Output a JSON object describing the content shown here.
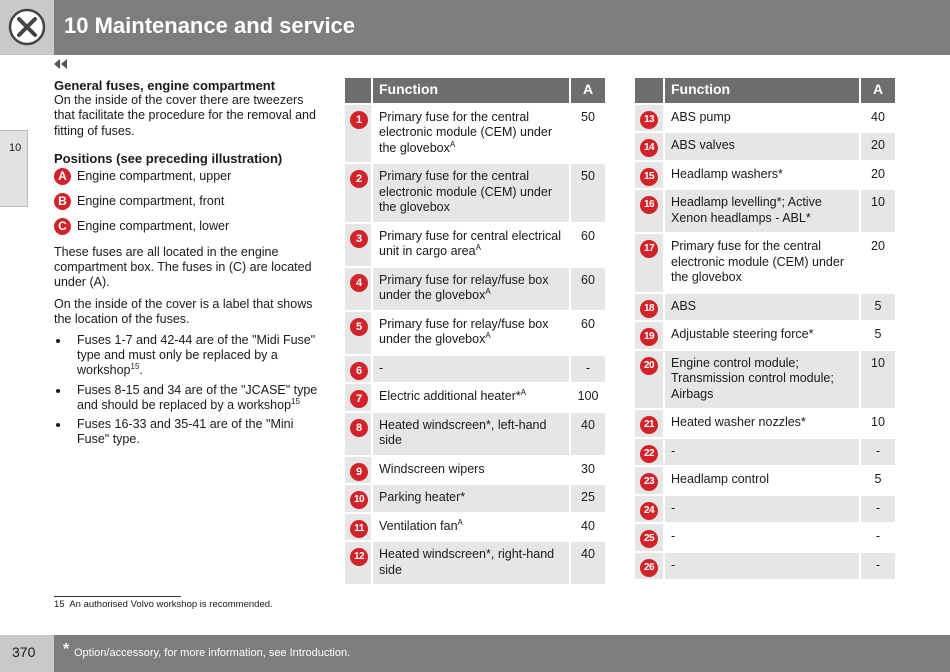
{
  "header": {
    "title": "10 Maintenance and service"
  },
  "side_tab": "10",
  "left": {
    "heading1": "General fuses, engine compartment",
    "para1": "On the inside of the cover there are tweezers that facilitate the procedure for the removal and fitting of fuses.",
    "heading2": "Positions (see preceding illustration)",
    "positions": [
      {
        "letter": "A",
        "text": "Engine compartment, upper"
      },
      {
        "letter": "B",
        "text": "Engine compartment, front"
      },
      {
        "letter": "C",
        "text": "Engine compartment, lower"
      }
    ],
    "para2": "These fuses are all located in the engine compartment box. The fuses in (C) are located under (A).",
    "para3": "On the inside of the cover is a label that shows the location of the fuses.",
    "bullets": [
      {
        "text": "Fuses 1-7 and 42-44 are of the \"Midi Fuse\" type and must only be replaced by a workshop",
        "ref": "15",
        "tail": "."
      },
      {
        "text": "Fuses 8-15 and 34 are of the \"JCASE\" type and should be replaced by a workshop",
        "ref": "15"
      },
      {
        "text": "Fuses 16-33 and 35-41 are of the \"Mini Fuse\" type."
      }
    ]
  },
  "tables": [
    {
      "headers": [
        "Function",
        "A"
      ],
      "rows": [
        {
          "num": "1",
          "function": "Primary fuse for the central electronic module (CEM) under the glovebox",
          "note": "A",
          "amps": "50"
        },
        {
          "num": "2",
          "function": "Primary fuse for the central electronic module (CEM) under the glovebox",
          "amps": "50"
        },
        {
          "num": "3",
          "function": "Primary fuse for central electrical unit in cargo area",
          "note": "A",
          "amps": "60"
        },
        {
          "num": "4",
          "function": "Primary fuse for relay/fuse box under the glovebox",
          "note": "A",
          "amps": "60"
        },
        {
          "num": "5",
          "function": "Primary fuse for relay/fuse box under the glovebox",
          "note": "A",
          "amps": "60"
        },
        {
          "num": "6",
          "function": "-",
          "amps": "-"
        },
        {
          "num": "7",
          "function": "Electric additional heater*",
          "note": "A",
          "amps": "100"
        },
        {
          "num": "8",
          "function": "Heated windscreen*, left-hand side",
          "amps": "40"
        },
        {
          "num": "9",
          "function": "Windscreen wipers",
          "amps": "30"
        },
        {
          "num": "10",
          "function": "Parking heater*",
          "amps": "25"
        },
        {
          "num": "11",
          "function": "Ventilation fan",
          "note": "A",
          "amps": "40"
        },
        {
          "num": "12",
          "function": "Heated windscreen*, right-hand side",
          "amps": "40"
        }
      ]
    },
    {
      "headers": [
        "Function",
        "A"
      ],
      "rows": [
        {
          "num": "13",
          "function": "ABS pump",
          "amps": "40"
        },
        {
          "num": "14",
          "function": "ABS valves",
          "amps": "20"
        },
        {
          "num": "15",
          "function": "Headlamp washers*",
          "amps": "20"
        },
        {
          "num": "16",
          "function": "Headlamp levelling*; Active Xenon headlamps - ABL*",
          "amps": "10"
        },
        {
          "num": "17",
          "function": "Primary fuse for the central electronic module (CEM) under the glovebox",
          "amps": "20"
        },
        {
          "num": "18",
          "function": "ABS",
          "amps": "5"
        },
        {
          "num": "19",
          "function": "Adjustable steering force*",
          "amps": "5"
        },
        {
          "num": "20",
          "function": "Engine control module; Transmission control module; Airbags",
          "amps": "10"
        },
        {
          "num": "21",
          "function": "Heated washer nozzles*",
          "amps": "10"
        },
        {
          "num": "22",
          "function": "-",
          "amps": "-"
        },
        {
          "num": "23",
          "function": "Headlamp control",
          "amps": "5"
        },
        {
          "num": "24",
          "function": "-",
          "amps": "-"
        },
        {
          "num": "25",
          "function": "-",
          "amps": "-"
        },
        {
          "num": "26",
          "function": "-",
          "amps": "-"
        }
      ]
    }
  ],
  "footnote": {
    "number": "15",
    "text": "An authorised Volvo workshop is recommended."
  },
  "footer": {
    "page": "370",
    "star": "*",
    "note": "Option/accessory, for more information, see Introduction."
  }
}
